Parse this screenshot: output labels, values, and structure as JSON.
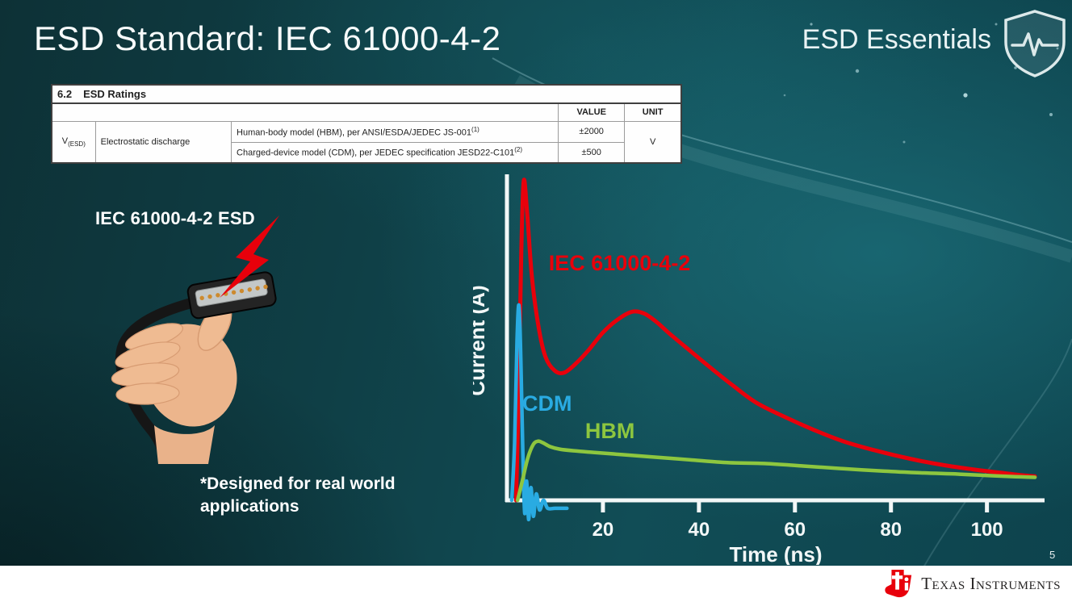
{
  "slide": {
    "title": "ESD Standard: IEC 61000-4-2",
    "series_brand": "ESD Essentials",
    "page_number": "5"
  },
  "ratings_table": {
    "section_number": "6.2",
    "section_title": "ESD Ratings",
    "col_value": "VALUE",
    "col_unit": "UNIT",
    "symbol_main": "V",
    "symbol_sub": "(ESD)",
    "parameter": "Electrostatic discharge",
    "rows": [
      {
        "test": "Human-body model (HBM), per ANSI/ESDA/JEDEC JS-001",
        "sup": "(1)",
        "value": "±2000"
      },
      {
        "test": "Charged-device model (CDM), per JEDEC specification JESD22-C101",
        "sup": "(2)",
        "value": "±500"
      }
    ],
    "unit": "V"
  },
  "left_panel": {
    "caption": "IEC 61000-4-2 ESD",
    "note_lines": [
      "*Designed for real world",
      "applications"
    ]
  },
  "footer": {
    "brand": "Texas Instruments"
  },
  "chart_data": {
    "type": "line",
    "title": "",
    "xlabel": "Time (ns)",
    "ylabel": "Current (A)",
    "xlim": [
      0,
      112
    ],
    "ylim": [
      -0.06,
      1.0
    ],
    "xticks": [
      20,
      40,
      60,
      80,
      100
    ],
    "grid": false,
    "legend": "inline-labels",
    "axis_color": "#f2f7f7",
    "note": "Y axis has no numeric tick labels; series values are normalized so the IEC 61000-4-2 first peak = 1.0",
    "series": [
      {
        "name": "IEC 61000-4-2",
        "color": "#e8000b",
        "width": 5,
        "label_pos": [
          8.7,
          0.72
        ],
        "points": [
          [
            1.9,
            0.0
          ],
          [
            2.4,
            0.3
          ],
          [
            3.0,
            0.78
          ],
          [
            3.5,
            1.0
          ],
          [
            4.2,
            0.9
          ],
          [
            5.2,
            0.7
          ],
          [
            6.5,
            0.55
          ],
          [
            8,
            0.45
          ],
          [
            10,
            0.405
          ],
          [
            12,
            0.4
          ],
          [
            14.5,
            0.43
          ],
          [
            17,
            0.47
          ],
          [
            20,
            0.525
          ],
          [
            23,
            0.565
          ],
          [
            26,
            0.59
          ],
          [
            28.5,
            0.585
          ],
          [
            31,
            0.56
          ],
          [
            34,
            0.52
          ],
          [
            38,
            0.47
          ],
          [
            42,
            0.42
          ],
          [
            47,
            0.36
          ],
          [
            52,
            0.305
          ],
          [
            58,
            0.26
          ],
          [
            64,
            0.22
          ],
          [
            70,
            0.185
          ],
          [
            77,
            0.155
          ],
          [
            84,
            0.13
          ],
          [
            91,
            0.11
          ],
          [
            97,
            0.097
          ],
          [
            103,
            0.086
          ],
          [
            107,
            0.079
          ],
          [
            110,
            0.075
          ]
        ]
      },
      {
        "name": "CDM",
        "color": "#29abe2",
        "width": 4.5,
        "label_pos": [
          3.2,
          0.28
        ],
        "points": [
          [
            1.0,
            0.0
          ],
          [
            1.6,
            0.18
          ],
          [
            2.1,
            0.5
          ],
          [
            2.5,
            0.61
          ],
          [
            2.9,
            0.44
          ],
          [
            3.3,
            0.16
          ],
          [
            3.7,
            -0.04
          ],
          [
            4.1,
            0.06
          ],
          [
            4.5,
            -0.06
          ],
          [
            5.0,
            0.04
          ],
          [
            5.5,
            -0.05
          ],
          [
            6.1,
            0.02
          ],
          [
            6.8,
            -0.03
          ],
          [
            7.6,
            0.0
          ],
          [
            8.5,
            -0.025
          ],
          [
            10,
            -0.025
          ],
          [
            12.5,
            -0.025
          ]
        ]
      },
      {
        "name": "HBM",
        "color": "#8dc63f",
        "width": 4.5,
        "label_pos": [
          16.3,
          0.195
        ],
        "points": [
          [
            2.2,
            0.0
          ],
          [
            3.2,
            0.06
          ],
          [
            4.3,
            0.13
          ],
          [
            5.5,
            0.175
          ],
          [
            6.5,
            0.185
          ],
          [
            7.5,
            0.18
          ],
          [
            9,
            0.168
          ],
          [
            11,
            0.16
          ],
          [
            14,
            0.155
          ],
          [
            18,
            0.15
          ],
          [
            24,
            0.143
          ],
          [
            30,
            0.136
          ],
          [
            38,
            0.127
          ],
          [
            46,
            0.118
          ],
          [
            54,
            0.115
          ],
          [
            62,
            0.107
          ],
          [
            70,
            0.099
          ],
          [
            78,
            0.092
          ],
          [
            86,
            0.086
          ],
          [
            94,
            0.082
          ],
          [
            101,
            0.077
          ],
          [
            106,
            0.074
          ],
          [
            110,
            0.072
          ]
        ]
      }
    ]
  }
}
